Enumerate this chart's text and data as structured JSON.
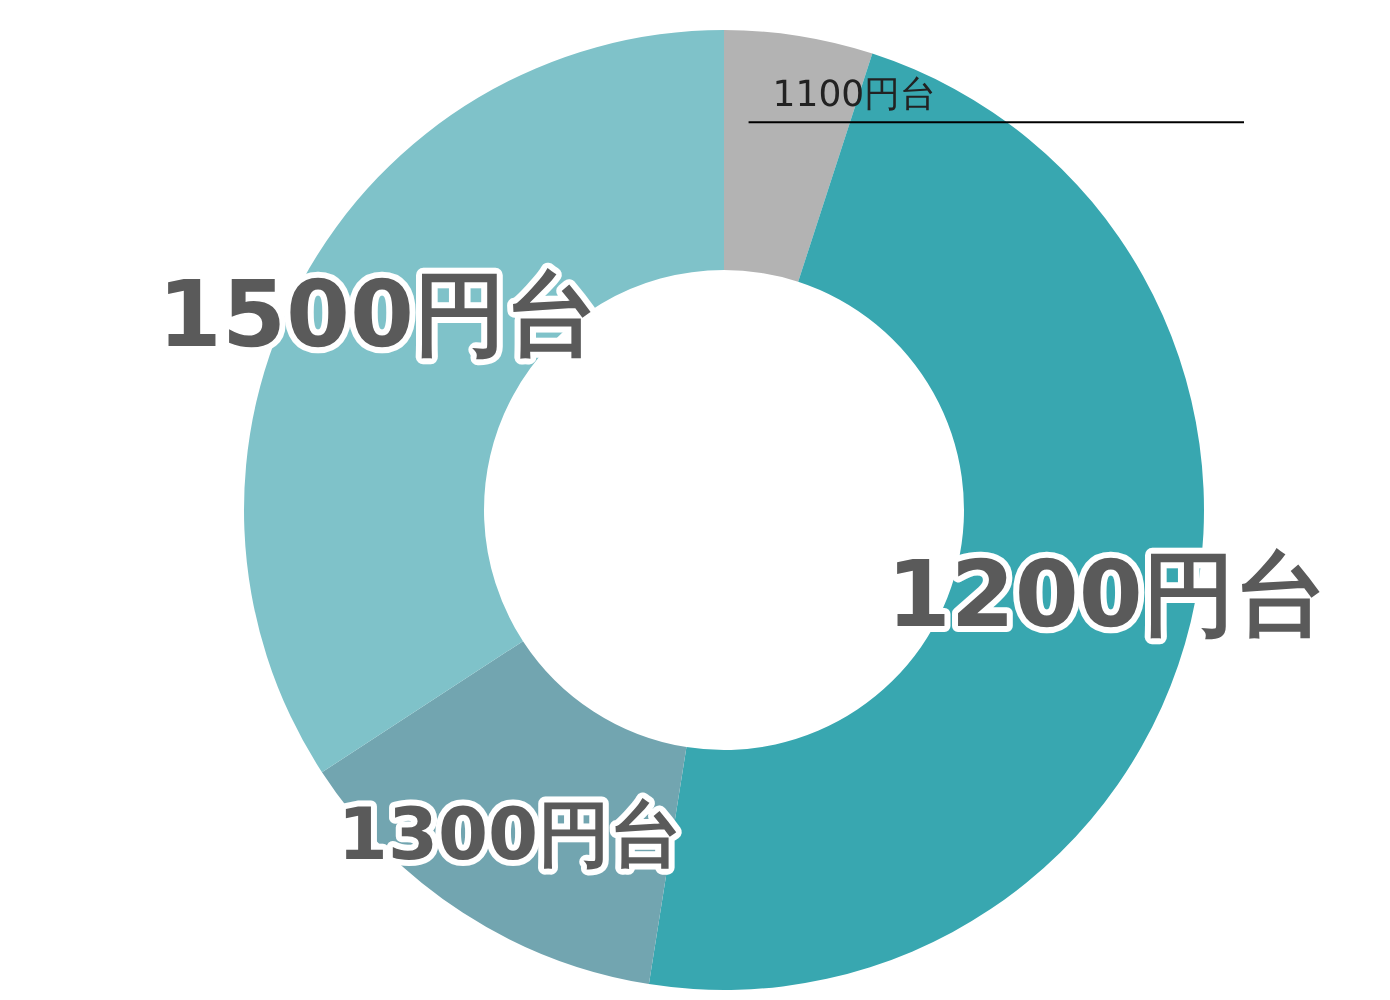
{
  "chart_data": {
    "type": "donut",
    "categories": [
      "1100円台",
      "1200円台",
      "1300円台",
      "1500円台"
    ],
    "values": [
      5,
      47.5,
      13.3,
      34.2
    ],
    "colors": [
      "#b3b3b3",
      "#38a7b0",
      "#72a5b0",
      "#7fc2c9"
    ],
    "legend": false
  }
}
